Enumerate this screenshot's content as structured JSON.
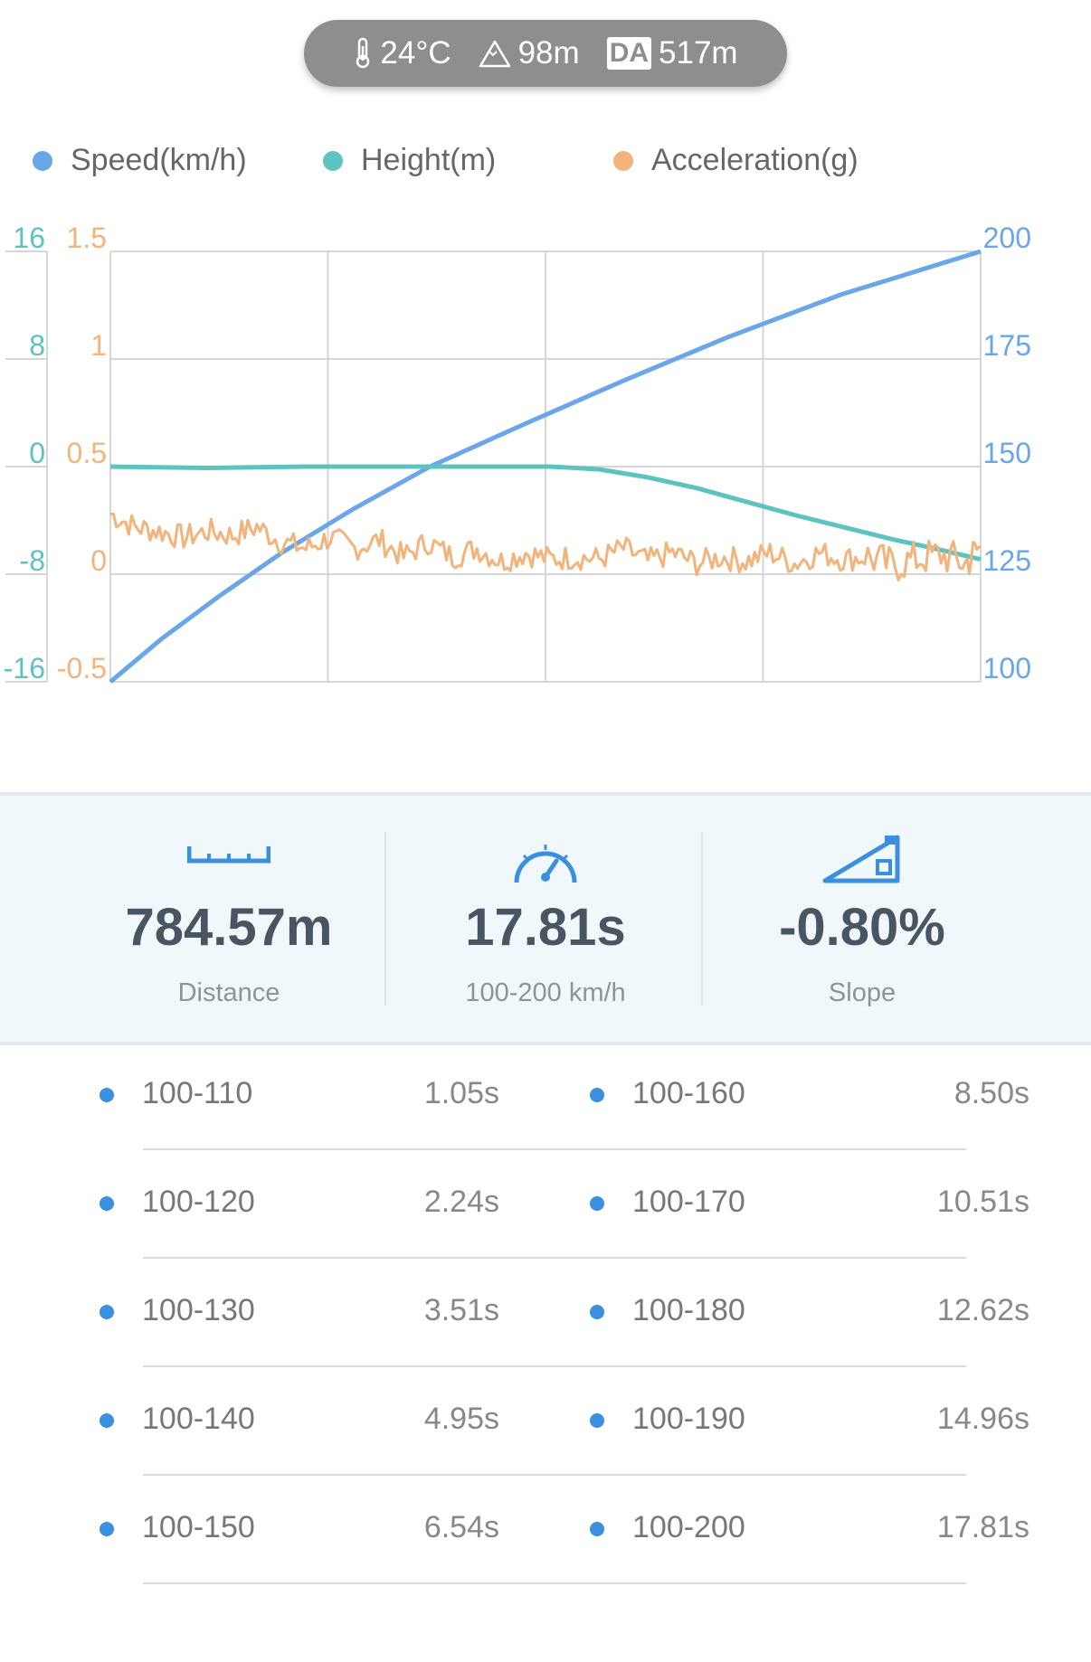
{
  "conditions": {
    "temperature": "24°C",
    "altitude": "98m",
    "density_altitude_badge": "DA",
    "density_altitude": "517m",
    "icons": [
      "thermometer-icon",
      "mountain-icon",
      "density-altitude-icon"
    ]
  },
  "legend": [
    {
      "label": "Speed(km/h)",
      "color": "#6aa6e8"
    },
    {
      "label": "Height(m)",
      "color": "#5cc3c1"
    },
    {
      "label": "Acceleration(g)",
      "color": "#f2b47a"
    }
  ],
  "chart_data": {
    "type": "line",
    "grid": true,
    "x_ticks_visible": false,
    "x_range": [
      0,
      17.81
    ],
    "axes": {
      "height": {
        "side": "left-outer",
        "ticks": [
          "16",
          "8",
          "0",
          "-8",
          "-16"
        ],
        "range": [
          -16,
          16
        ],
        "color": "#5cc3c1"
      },
      "acceleration": {
        "side": "left-inner",
        "ticks": [
          "1.5",
          "1",
          "0.5",
          "0",
          "-0.5"
        ],
        "range": [
          -0.5,
          1.5
        ],
        "color": "#f2b47a"
      },
      "speed": {
        "side": "right",
        "ticks": [
          "200",
          "175",
          "150",
          "125",
          "100"
        ],
        "range": [
          100,
          200
        ],
        "color": "#6aa6e8"
      }
    },
    "series": [
      {
        "name": "Speed(km/h)",
        "axis": "speed",
        "color": "#6aa6e8",
        "x": [
          0,
          1.05,
          2.24,
          3.51,
          4.95,
          6.54,
          8.5,
          10.51,
          12.62,
          14.96,
          17.81
        ],
        "values": [
          100,
          110,
          120,
          130,
          140,
          150,
          160,
          170,
          180,
          190,
          200
        ]
      },
      {
        "name": "Height(m)",
        "axis": "height",
        "color": "#5cc3c1",
        "x": [
          0,
          2,
          4,
          6,
          8,
          9,
          10,
          11,
          12,
          13,
          14,
          15,
          16,
          17,
          17.81
        ],
        "values": [
          0,
          -0.1,
          0,
          0,
          0,
          0,
          -0.2,
          -0.8,
          -1.6,
          -2.6,
          -3.6,
          -4.5,
          -5.4,
          -6.2,
          -6.9
        ]
      },
      {
        "name": "Acceleration(g)",
        "axis": "acceleration",
        "color": "#f2b47a",
        "x": [
          0,
          0.5,
          1,
          1.5,
          2,
          2.5,
          3,
          3.5,
          4,
          4.5,
          5,
          5.5,
          6,
          6.5,
          7,
          7.5,
          8,
          8.5,
          9,
          9.5,
          10,
          10.5,
          11,
          11.5,
          12,
          12.5,
          13,
          13.5,
          14,
          14.5,
          15,
          15.5,
          16,
          16.5,
          17,
          17.5,
          17.81
        ],
        "values": [
          0.28,
          0.22,
          0.2,
          0.17,
          0.2,
          0.18,
          0.22,
          0.15,
          0.12,
          0.17,
          0.12,
          0.16,
          0.08,
          0.15,
          0.08,
          0.12,
          0.06,
          0.1,
          0.07,
          0.08,
          0.07,
          0.12,
          0.06,
          0.1,
          0.05,
          0.08,
          0.06,
          0.1,
          0.05,
          0.1,
          0.07,
          0.08,
          0.04,
          0.07,
          0.09,
          0.05,
          0.13
        ]
      }
    ]
  },
  "stats": [
    {
      "icon": "ruler-icon",
      "value": "784.57m",
      "label": "Distance"
    },
    {
      "icon": "speedometer-icon",
      "value": "17.81s",
      "label": "100-200 km/h"
    },
    {
      "icon": "slope-icon",
      "value": "-0.80%",
      "label": "Slope"
    }
  ],
  "splits": [
    {
      "range": "100-110",
      "time": "1.05s"
    },
    {
      "range": "100-160",
      "time": "8.50s"
    },
    {
      "range": "100-120",
      "time": "2.24s"
    },
    {
      "range": "100-170",
      "time": "10.51s"
    },
    {
      "range": "100-130",
      "time": "3.51s"
    },
    {
      "range": "100-180",
      "time": "12.62s"
    },
    {
      "range": "100-140",
      "time": "4.95s"
    },
    {
      "range": "100-190",
      "time": "14.96s"
    },
    {
      "range": "100-150",
      "time": "6.54s"
    },
    {
      "range": "100-200",
      "time": "17.81s"
    }
  ]
}
